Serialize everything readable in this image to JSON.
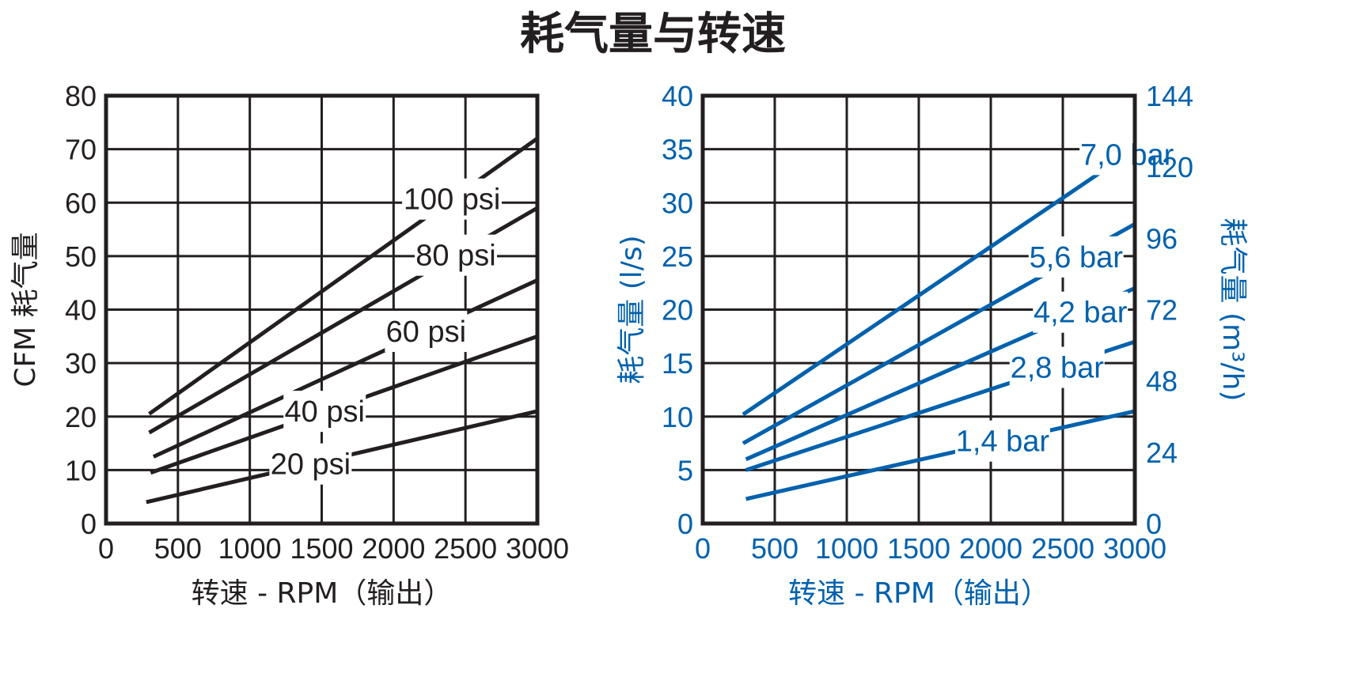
{
  "figure_title": "耗气量与转速",
  "colors": {
    "left": "#231f20",
    "right": "#0061ad",
    "grid": "#231f20",
    "background": "#ffffff"
  },
  "chart_data": [
    {
      "type": "line",
      "xlabel": "转速 - RPM（输出）",
      "ylabel": "CFM 耗气量",
      "xlim": [
        0,
        3000
      ],
      "ylim": [
        0,
        80
      ],
      "xticks": [
        0,
        500,
        1000,
        1500,
        2000,
        2500,
        3000
      ],
      "yticks": [
        0,
        10,
        20,
        30,
        40,
        50,
        60,
        70,
        80
      ],
      "grid": true,
      "series": [
        {
          "name": "100 psi",
          "x": [
            300,
            3000
          ],
          "y": [
            20.5,
            72
          ]
        },
        {
          "name": "80 psi",
          "x": [
            300,
            3000
          ],
          "y": [
            17,
            59
          ]
        },
        {
          "name": "60 psi",
          "x": [
            330,
            3000
          ],
          "y": [
            12.5,
            45.5
          ]
        },
        {
          "name": "40 psi",
          "x": [
            310,
            3000
          ],
          "y": [
            9.5,
            35
          ]
        },
        {
          "name": "20 psi",
          "x": [
            280,
            3000
          ],
          "y": [
            4,
            21
          ]
        }
      ]
    },
    {
      "type": "line",
      "xlabel": "转速 - RPM（输出）",
      "ylabel": "耗气量 (l/s)",
      "ylabel_right": "耗气量 (m³/h)",
      "xlim": [
        0,
        3000
      ],
      "ylim": [
        0,
        40
      ],
      "ylim_right": [
        0,
        144
      ],
      "xticks": [
        0,
        500,
        1000,
        1500,
        2000,
        2500,
        3000
      ],
      "yticks": [
        0,
        5,
        10,
        15,
        20,
        25,
        30,
        35,
        40
      ],
      "yticks_right": [
        0,
        24,
        48,
        72,
        96,
        120,
        144
      ],
      "grid": true,
      "series": [
        {
          "name": "7,0 bar",
          "x": [
            280,
            3000
          ],
          "y": [
            10.2,
            35
          ]
        },
        {
          "name": "5,6 bar",
          "x": [
            280,
            3000
          ],
          "y": [
            7.5,
            28
          ]
        },
        {
          "name": "4,2 bar",
          "x": [
            300,
            3000
          ],
          "y": [
            6,
            22
          ]
        },
        {
          "name": "2,8 bar",
          "x": [
            300,
            3000
          ],
          "y": [
            5,
            17
          ]
        },
        {
          "name": "1,4 bar",
          "x": [
            300,
            3000
          ],
          "y": [
            2.3,
            10.5
          ]
        }
      ]
    }
  ]
}
